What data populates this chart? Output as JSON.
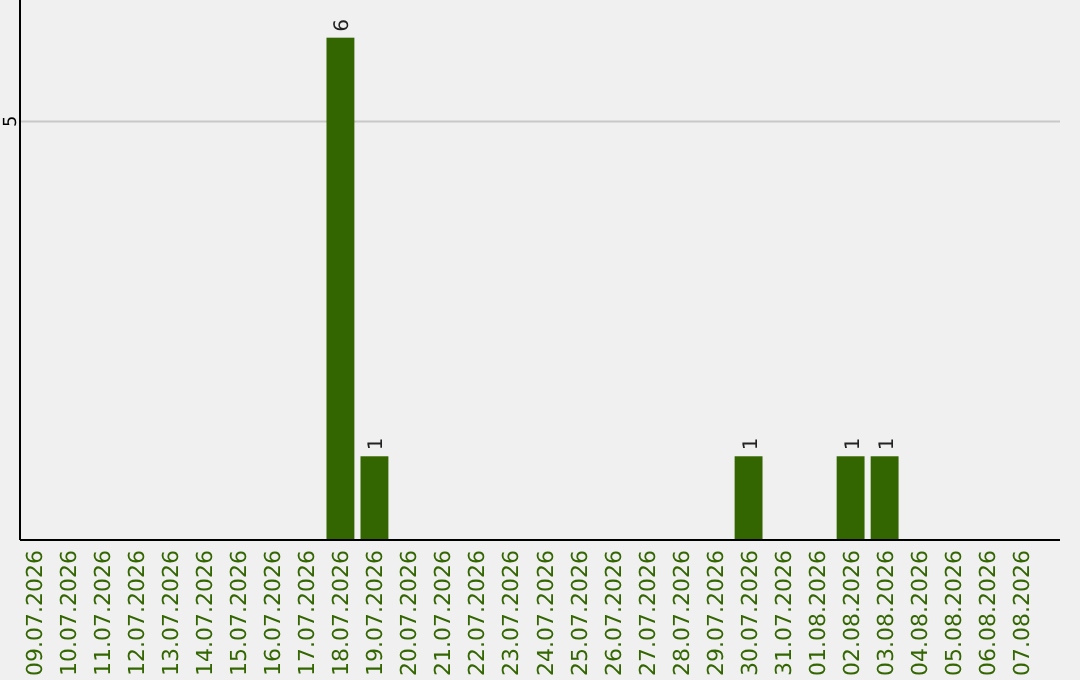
{
  "chart_data": {
    "type": "bar",
    "categories": [
      "09.07.2026",
      "10.07.2026",
      "11.07.2026",
      "12.07.2026",
      "13.07.2026",
      "14.07.2026",
      "15.07.2026",
      "16.07.2026",
      "17.07.2026",
      "18.07.2026",
      "19.07.2026",
      "20.07.2026",
      "21.07.2026",
      "22.07.2026",
      "23.07.2026",
      "24.07.2026",
      "25.07.2026",
      "26.07.2026",
      "27.07.2026",
      "28.07.2026",
      "29.07.2026",
      "30.07.2026",
      "31.07.2026",
      "01.08.2026",
      "02.08.2026",
      "03.08.2026",
      "04.08.2026",
      "05.08.2026",
      "06.08.2026",
      "07.08.2026"
    ],
    "values": [
      0,
      0,
      0,
      0,
      0,
      0,
      0,
      0,
      0,
      6,
      1,
      0,
      0,
      0,
      0,
      0,
      0,
      0,
      0,
      0,
      0,
      1,
      0,
      0,
      1,
      1,
      0,
      0,
      0,
      0
    ],
    "value_labels": [
      null,
      null,
      null,
      null,
      null,
      null,
      null,
      null,
      null,
      "6",
      "1",
      null,
      null,
      null,
      null,
      null,
      null,
      null,
      null,
      null,
      null,
      "1",
      null,
      null,
      "1",
      "1",
      null,
      null,
      null,
      null
    ],
    "color": "#336600",
    "ylim": [
      0,
      6.45
    ],
    "yticks": [
      5
    ],
    "grid": "y"
  }
}
